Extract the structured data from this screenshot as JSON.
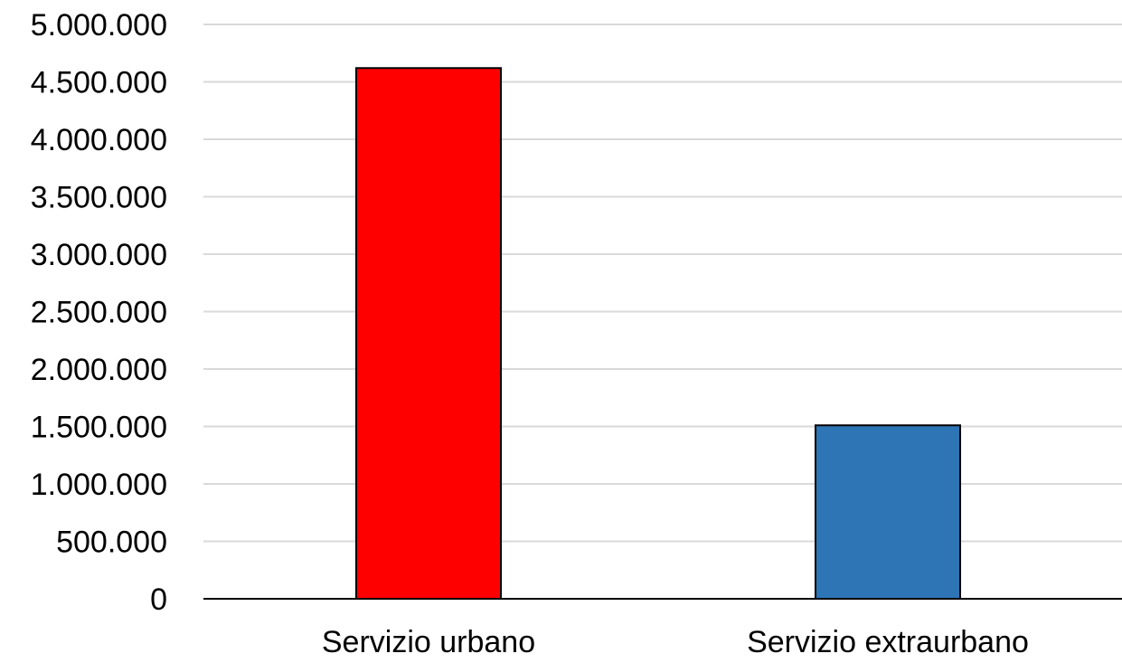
{
  "chart_data": {
    "type": "bar",
    "categories": [
      "Servizio urbano",
      "Servizio extraurbano"
    ],
    "values": [
      4620000,
      1510000
    ],
    "bar_colors": [
      "#ff0000",
      "#2e75b6"
    ],
    "ylim": [
      0,
      5000000
    ],
    "y_ticks": [
      0,
      500000,
      1000000,
      1500000,
      2000000,
      2500000,
      3000000,
      3500000,
      4000000,
      4500000,
      5000000
    ],
    "y_tick_labels": [
      "0",
      "500.000",
      "1.000.000",
      "1.500.000",
      "2.000.000",
      "2.500.000",
      "3.000.000",
      "3.500.000",
      "4.000.000",
      "4.500.000",
      "5.000.000"
    ],
    "grid": true,
    "legend": "none",
    "title": "",
    "xlabel": "",
    "ylabel": ""
  }
}
